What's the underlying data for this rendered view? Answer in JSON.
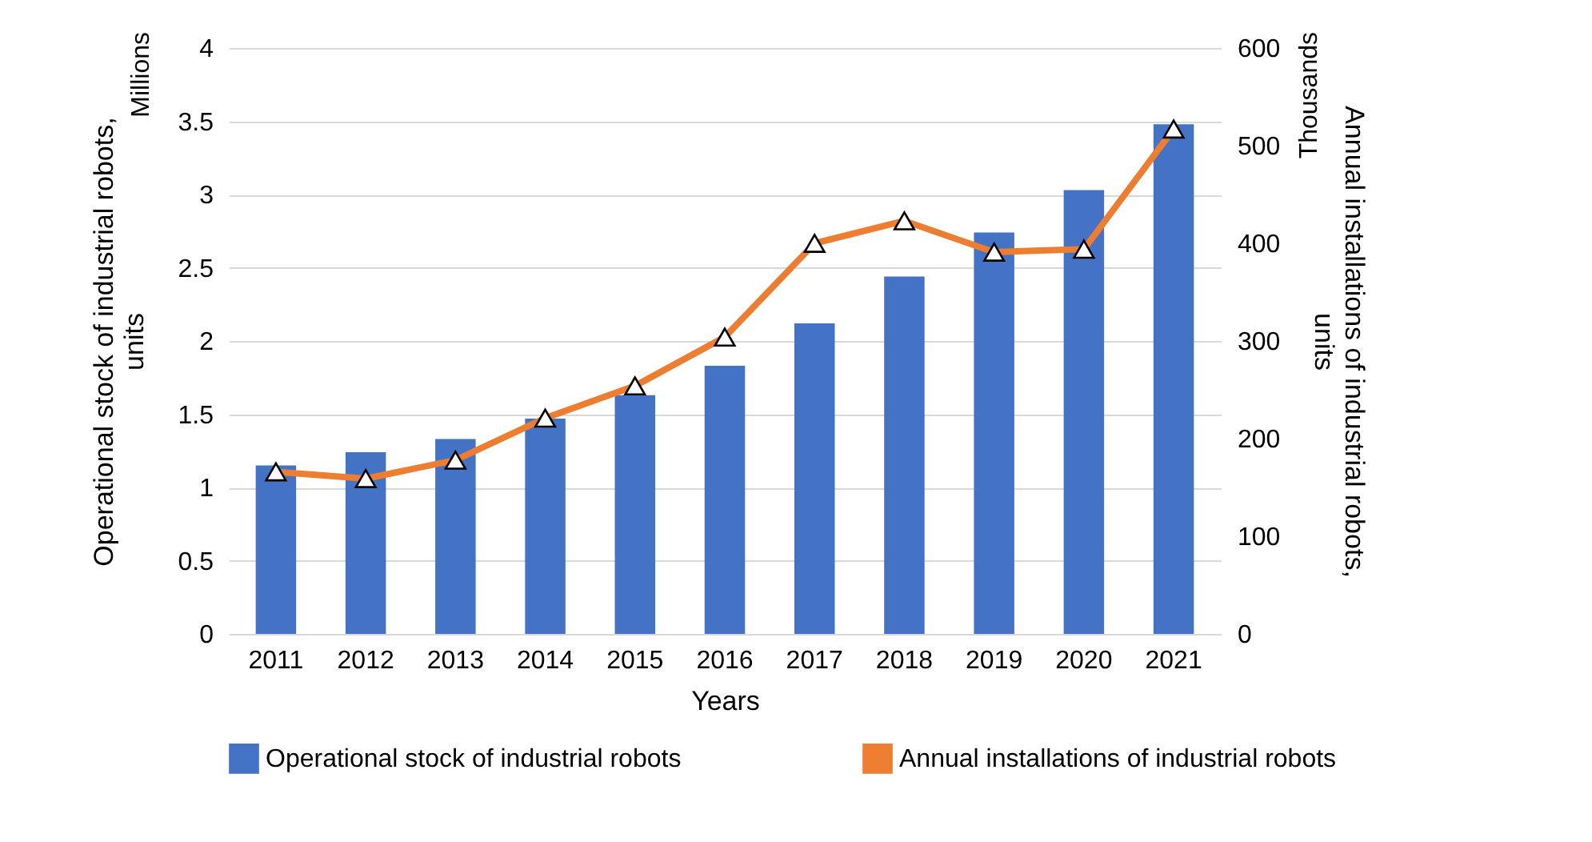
{
  "chart_data": {
    "type": "bar",
    "categories": [
      "2011",
      "2012",
      "2013",
      "2014",
      "2015",
      "2016",
      "2017",
      "2018",
      "2019",
      "2020",
      "2021"
    ],
    "xlabel": "Years",
    "ylabel": "Operational stock of industrial robots, units",
    "y2label": "Annual installations of industrial robots, units",
    "annotations": [
      "Millions",
      "Thousands"
    ],
    "series": [
      {
        "name": "Operational stock of industrial robots",
        "color": "#4472c4",
        "values": [
          1.15,
          1.24,
          1.33,
          1.47,
          1.63,
          1.83,
          2.12,
          2.44,
          2.74,
          3.03,
          3.48
        ]
      },
      {
        "name": "Annual installations of industrial robots",
        "type": "line",
        "axis": "y2",
        "color": "#ed7d31",
        "marker": "triangle",
        "values": [
          166,
          159,
          178,
          221,
          254,
          304,
          400,
          423,
          391,
          394,
          517
        ]
      }
    ],
    "ylim": [
      0,
      4
    ],
    "yticks": [
      0,
      0.5,
      1,
      1.5,
      2,
      2.5,
      3,
      3.5,
      4
    ],
    "y2lim": [
      0,
      600
    ],
    "y2ticks": [
      0,
      100,
      200,
      300,
      400,
      500,
      600
    ],
    "grid": "y",
    "legend": "bottom"
  }
}
